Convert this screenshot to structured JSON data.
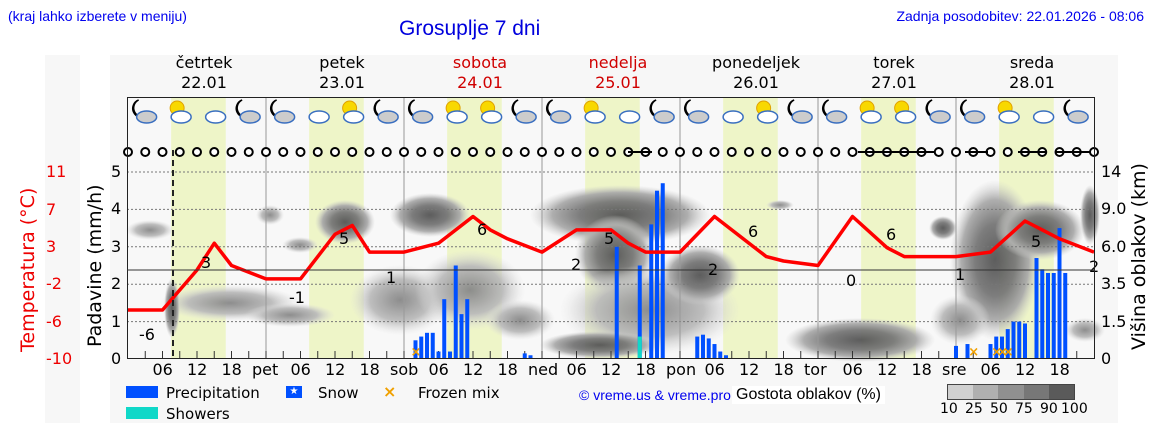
{
  "header": {
    "hint": "(kraj lahko izberete v meniju)",
    "title": "Grosuplje 7 dni",
    "updated": "Zadnja posodobitev: 22.01.2026 - 08:06"
  },
  "days": [
    {
      "name": "četrtek",
      "date": "22.01",
      "weekend": false
    },
    {
      "name": "petek",
      "date": "23.01",
      "weekend": false
    },
    {
      "name": "sobota",
      "date": "24.01",
      "weekend": true
    },
    {
      "name": "nedelja",
      "date": "25.01",
      "weekend": true
    },
    {
      "name": "ponedeljek",
      "date": "26.01",
      "weekend": false
    },
    {
      "name": "torek",
      "date": "27.01",
      "weekend": false
    },
    {
      "name": "sreda",
      "date": "28.01",
      "weekend": false
    }
  ],
  "axes": {
    "temp_title": "Temperatura (°C)",
    "precip_title": "Padavine (mm/h)",
    "cloud_height_title": "Višina oblakov (km)",
    "temp_ticks": [
      "11",
      "7",
      "3",
      "-2",
      "-6",
      "-10"
    ],
    "precip_ticks": [
      "5",
      "4",
      "3",
      "2",
      "1",
      "0"
    ],
    "cloud_height_ticks": [
      "14",
      "9.0",
      "6.0",
      "3.5",
      "1.5",
      "0"
    ],
    "x_ticks": [
      "06",
      "12",
      "18",
      "pet",
      "06",
      "12",
      "18",
      "sob",
      "06",
      "12",
      "18",
      "ned",
      "06",
      "12",
      "18",
      "pon",
      "06",
      "12",
      "18",
      "tor",
      "06",
      "12",
      "18",
      "sre",
      "06",
      "12",
      "18"
    ]
  },
  "legend": {
    "precipitation": "Precipitation",
    "snow": "Snow",
    "frozen_mix": "Frozen mix",
    "showers": "Showers",
    "copyright": "© vreme.us & vreme.pro",
    "cloud_density_title": "Gostota oblakov (%)",
    "cloud_density_ticks": [
      "10",
      "25",
      "50",
      "75",
      "90",
      "100"
    ]
  },
  "colors": {
    "precipitation": "#0050ff",
    "showers": "#10d8c8",
    "frozen_mix": "#f0a000",
    "temperature": "#ff0000",
    "daylight": "#eef5c8",
    "weekend_text": "#d00000"
  },
  "chart_data": {
    "type": "line+bar",
    "title": "Grosuplje 7 dni",
    "xlabel": "",
    "ylabel": "Padavine (mm/h)",
    "ylim": [
      0,
      5
    ],
    "temperature_labels": [
      {
        "day": "četrtek",
        "hour": 3,
        "value": -6
      },
      {
        "day": "četrtek",
        "hour": 14,
        "value": 3
      },
      {
        "day": "petek",
        "hour": 2,
        "value": -1
      },
      {
        "day": "petek",
        "hour": 14,
        "value": 5
      },
      {
        "day": "sobota",
        "hour": 0,
        "value": 1
      },
      {
        "day": "sobota",
        "hour": 15,
        "value": 6
      },
      {
        "day": "nedelja",
        "hour": 3,
        "value": 2
      },
      {
        "day": "nedelja",
        "hour": 14,
        "value": 5
      },
      {
        "day": "ponedeljek",
        "hour": 4,
        "value": 2
      },
      {
        "day": "ponedeljek",
        "hour": 15,
        "value": 6
      },
      {
        "day": "torek",
        "hour": 3,
        "value": 0
      },
      {
        "day": "torek",
        "hour": 15,
        "value": 6
      },
      {
        "day": "sreda",
        "hour": 0,
        "value": 1
      },
      {
        "day": "sreda",
        "hour": 14,
        "value": 5
      },
      {
        "day": "sreda",
        "hour": 24,
        "value": 2
      }
    ],
    "temperature_series": {
      "name": "Temperatura (°C)",
      "x_hours": [
        0,
        6,
        12,
        15,
        18,
        24,
        30,
        36,
        39,
        42,
        48,
        54,
        60,
        63,
        66,
        72,
        78,
        84,
        87,
        90,
        96,
        102,
        108,
        111,
        114,
        120,
        126,
        132,
        135,
        138,
        144,
        150,
        156,
        159,
        162,
        168
      ],
      "values": [
        -4.5,
        -4.5,
        0,
        3,
        0.5,
        -1.0,
        -1.0,
        4.0,
        5.0,
        2.0,
        2.0,
        3.0,
        6.0,
        4.5,
        3.5,
        2.0,
        4.5,
        4.5,
        3.0,
        2.0,
        2.0,
        6.0,
        3.0,
        1.5,
        1.0,
        0.5,
        6.0,
        2.5,
        1.5,
        1.5,
        1.5,
        2.0,
        5.5,
        4.5,
        3.5,
        2.0
      ]
    },
    "precipitation_series": {
      "name": "Precipitation",
      "unit": "mm/h",
      "bars": [
        {
          "x_hour": 50,
          "value": 0.5
        },
        {
          "x_hour": 51,
          "value": 0.6
        },
        {
          "x_hour": 52,
          "value": 0.7
        },
        {
          "x_hour": 53,
          "value": 0.7
        },
        {
          "x_hour": 54,
          "value": 0.2
        },
        {
          "x_hour": 55,
          "value": 1.6
        },
        {
          "x_hour": 56,
          "value": 0.2
        },
        {
          "x_hour": 57,
          "value": 2.5
        },
        {
          "x_hour": 58,
          "value": 1.2
        },
        {
          "x_hour": 59,
          "value": 1.6
        },
        {
          "x_hour": 69,
          "value": 0.15
        },
        {
          "x_hour": 70,
          "value": 0.1
        },
        {
          "x_hour": 85,
          "value": 3.0
        },
        {
          "x_hour": 89,
          "value": 2.5
        },
        {
          "x_hour": 91,
          "value": 3.6
        },
        {
          "x_hour": 92,
          "value": 4.5
        },
        {
          "x_hour": 93,
          "value": 4.7
        },
        {
          "x_hour": 99,
          "value": 0.6
        },
        {
          "x_hour": 100,
          "value": 0.65
        },
        {
          "x_hour": 101,
          "value": 0.55
        },
        {
          "x_hour": 102,
          "value": 0.4
        },
        {
          "x_hour": 103,
          "value": 0.2
        },
        {
          "x_hour": 104,
          "value": 0.1
        },
        {
          "x_hour": 144,
          "value": 0.35
        },
        {
          "x_hour": 146,
          "value": 0.4
        },
        {
          "x_hour": 150,
          "value": 0.4
        },
        {
          "x_hour": 151,
          "value": 0.6
        },
        {
          "x_hour": 152,
          "value": 0.6
        },
        {
          "x_hour": 153,
          "value": 0.8
        },
        {
          "x_hour": 154,
          "value": 1.0
        },
        {
          "x_hour": 155,
          "value": 1.0
        },
        {
          "x_hour": 156,
          "value": 0.95
        },
        {
          "x_hour": 158,
          "value": 2.7
        },
        {
          "x_hour": 159,
          "value": 2.4
        },
        {
          "x_hour": 160,
          "value": 2.3
        },
        {
          "x_hour": 161,
          "value": 2.3
        },
        {
          "x_hour": 162,
          "value": 3.5
        },
        {
          "x_hour": 163,
          "value": 2.3
        }
      ]
    },
    "showers_series": {
      "name": "Showers",
      "bars": [
        {
          "x_hour": 89,
          "value": 0.6
        }
      ]
    },
    "frozen_mix_markers": [
      50,
      147,
      151,
      152,
      153
    ],
    "grid": true,
    "legend_position": "bottom"
  }
}
